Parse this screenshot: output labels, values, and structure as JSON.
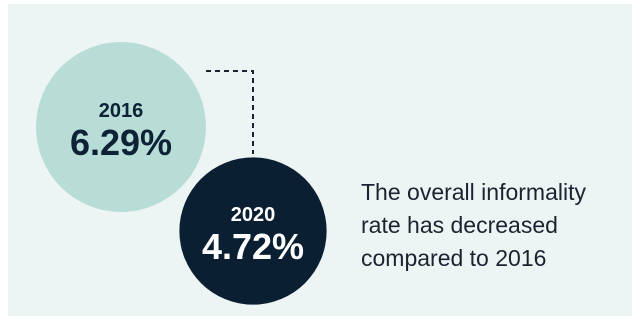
{
  "chart_data": {
    "type": "bubble",
    "title": "",
    "points": [
      {
        "year": "2016",
        "value": 6.29,
        "label": "6.29%",
        "color": "#b7ddd6",
        "text_color": "#0d2236"
      },
      {
        "year": "2020",
        "value": 4.72,
        "label": "4.72%",
        "color": "#0b1f33",
        "text_color": "#ffffff"
      }
    ],
    "connector": "dashed",
    "annotation": [
      "The overall informality",
      "rate has decreased",
      "compared to 2016"
    ]
  }
}
